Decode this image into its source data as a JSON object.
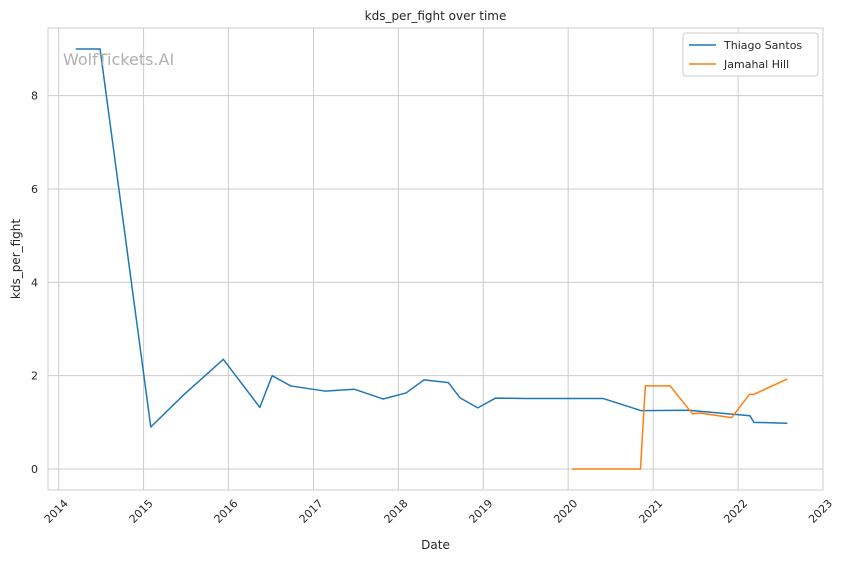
{
  "watermark": "WolfTickets.AI",
  "chart_data": {
    "type": "line",
    "title": "kds_per_fight over time",
    "xlabel": "Date",
    "ylabel": "kds_per_fight",
    "x_ticks": [
      "2014",
      "2015",
      "2016",
      "2017",
      "2018",
      "2019",
      "2020",
      "2021",
      "2022",
      "2023"
    ],
    "y_ticks": [
      0,
      2,
      4,
      6,
      8
    ],
    "xlim": [
      "2013-11-16",
      "2023-01-01"
    ],
    "ylim": [
      -0.45,
      9.45
    ],
    "grid": true,
    "legend_position": "top-right",
    "series": [
      {
        "name": "Thiago Santos",
        "color": "#1f77b4",
        "points": [
          [
            "2014-03-15",
            9.0
          ],
          [
            "2014-06-28",
            9.0
          ],
          [
            "2015-02-01",
            0.9
          ],
          [
            "2015-06-25",
            1.6
          ],
          [
            "2015-12-10",
            2.35
          ],
          [
            "2016-05-15",
            1.32
          ],
          [
            "2016-07-07",
            2.0
          ],
          [
            "2016-09-25",
            1.78
          ],
          [
            "2017-02-19",
            1.67
          ],
          [
            "2017-06-25",
            1.71
          ],
          [
            "2017-10-27",
            1.5
          ],
          [
            "2018-02-03",
            1.63
          ],
          [
            "2018-04-21",
            1.91
          ],
          [
            "2018-08-04",
            1.85
          ],
          [
            "2018-09-22",
            1.53
          ],
          [
            "2018-12-08",
            1.31
          ],
          [
            "2019-02-23",
            1.52
          ],
          [
            "2019-06-29",
            1.51
          ],
          [
            "2020-05-31",
            1.51
          ],
          [
            "2020-11-10",
            1.25
          ],
          [
            "2021-06-01",
            1.26
          ],
          [
            "2022-02-21",
            1.14
          ],
          [
            "2022-03-10",
            1.0
          ],
          [
            "2022-08-01",
            0.98
          ]
        ]
      },
      {
        "name": "Jamahal Hill",
        "color": "#ff7f0e",
        "points": [
          [
            "2020-01-18",
            0.0
          ],
          [
            "2020-11-07",
            0.0
          ],
          [
            "2020-11-28",
            1.78
          ],
          [
            "2021-03-15",
            1.78
          ],
          [
            "2021-06-19",
            1.18
          ],
          [
            "2021-07-20",
            1.2
          ],
          [
            "2021-12-04",
            1.1
          ],
          [
            "2022-02-19",
            1.6
          ],
          [
            "2022-03-10",
            1.6
          ],
          [
            "2022-08-01",
            1.93
          ]
        ]
      }
    ]
  }
}
